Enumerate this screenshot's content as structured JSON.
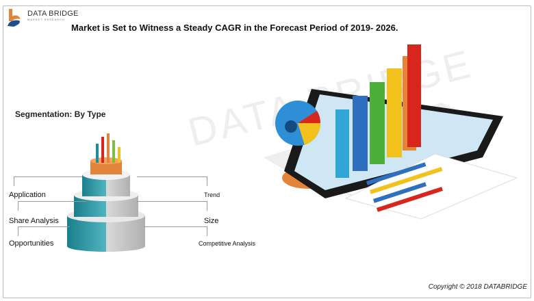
{
  "logo": {
    "name": "DATA BRIDGE",
    "sub": "MARKET RESEARCH"
  },
  "title": "Market is Set to Witness a Steady CAGR in the Forecast Period of 2019- 2026.",
  "segmentation": {
    "heading": "Segmentation: By Type",
    "left": [
      "Application",
      "Share Analysis",
      "Opportunities"
    ],
    "right": [
      "Trend",
      "Size",
      "Competitive Analysis"
    ]
  },
  "watermark": "DATA BRIDGE",
  "copyright": "Copyright © 2018 DATABRIDGE",
  "colors": {
    "teal": "#1b8e9c",
    "orange": "#e2843a",
    "accent_red": "#d9261c"
  }
}
